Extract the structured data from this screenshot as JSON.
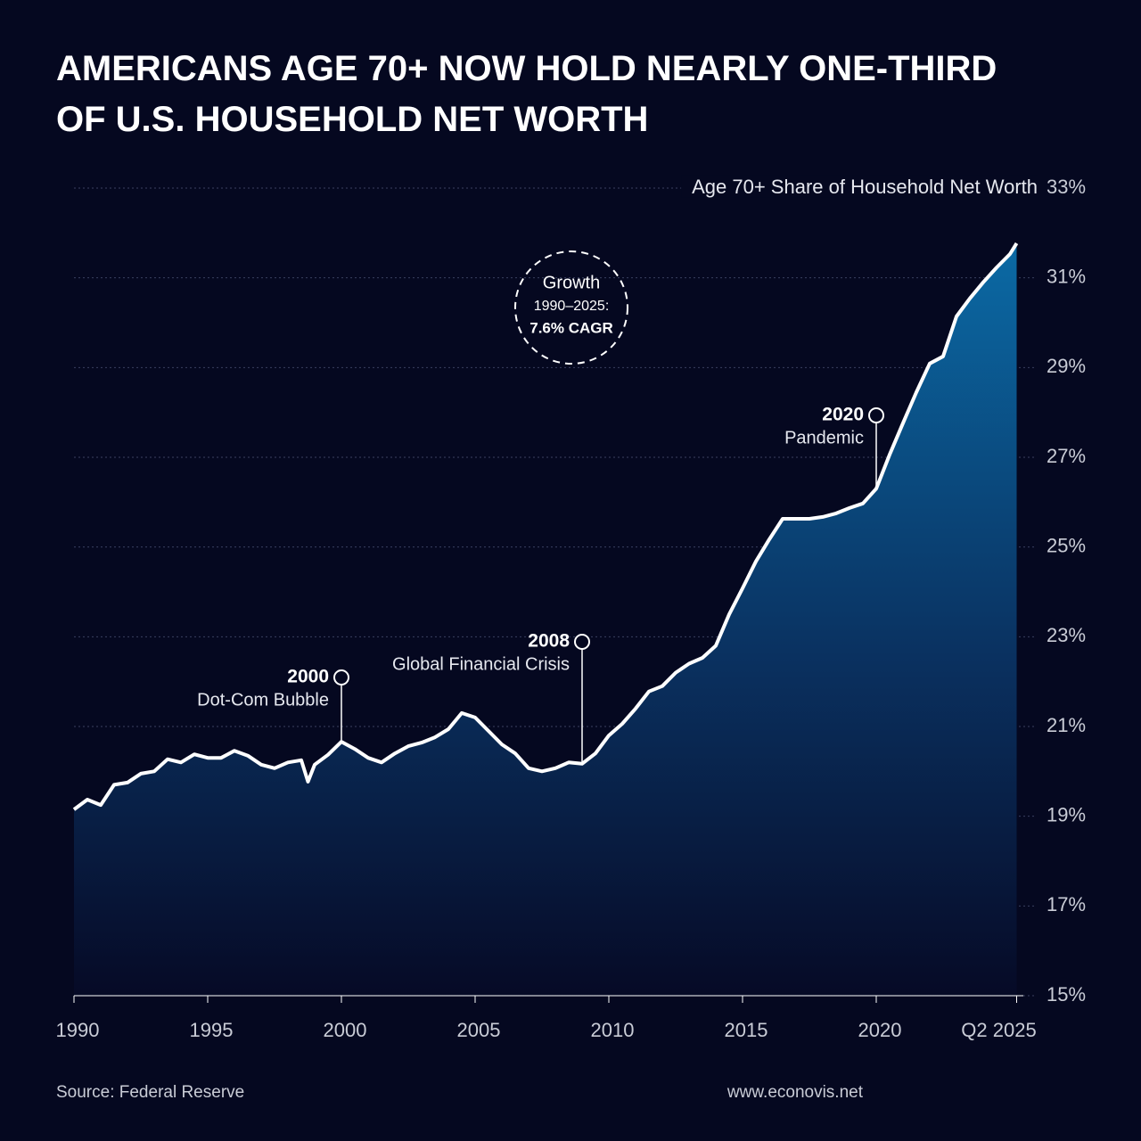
{
  "chart_data": {
    "type": "area",
    "title": [
      "AMERICANS AGE 70+ NOW HOLD NEARLY ONE-THIRD",
      "OF U.S. HOUSEHOLD NET WORTH"
    ],
    "series": [
      {
        "name": "Age 70+ Share of Household Net Worth",
        "color": "#ffffff",
        "x": [
          1990,
          1990.5,
          1991,
          1991.5,
          1992,
          1992.5,
          1993,
          1993.5,
          1994,
          1994.5,
          1995,
          1995.5,
          1996,
          1996.5,
          1997,
          1997.5,
          1998,
          1998.5,
          1998.75,
          1999,
          1999.5,
          2000,
          2000.5,
          2001,
          2001.5,
          2002,
          2002.5,
          2003,
          2003.5,
          2004,
          2004.5,
          2005,
          2005.5,
          2006,
          2006.5,
          2007,
          2007.5,
          2008,
          2008.5,
          2009,
          2009.5,
          2010,
          2010.5,
          2011,
          2011.5,
          2012,
          2012.5,
          2013,
          2013.5,
          2014,
          2014.5,
          2015,
          2015.5,
          2016,
          2016.5,
          2017,
          2017.5,
          2018,
          2018.5,
          2019,
          2019.5,
          2020,
          2020.5,
          2021,
          2021.5,
          2022,
          2022.5,
          2023,
          2023.5,
          2024,
          2024.5,
          2025,
          2025.25
        ],
        "values": [
          19.15,
          19.37,
          19.25,
          19.7,
          19.75,
          19.95,
          20.0,
          20.27,
          20.2,
          20.38,
          20.3,
          20.3,
          20.46,
          20.35,
          20.15,
          20.07,
          20.2,
          20.25,
          19.77,
          20.15,
          20.37,
          20.66,
          20.5,
          20.3,
          20.2,
          20.4,
          20.56,
          20.64,
          20.76,
          20.94,
          21.3,
          21.2,
          20.9,
          20.6,
          20.4,
          20.07,
          20.0,
          20.07,
          20.2,
          20.17,
          20.4,
          20.8,
          21.06,
          21.4,
          21.78,
          21.9,
          22.2,
          22.4,
          22.53,
          22.8,
          23.5,
          24.08,
          24.68,
          25.17,
          25.63,
          25.63,
          25.63,
          25.67,
          25.75,
          25.87,
          25.97,
          26.3,
          27.06,
          27.76,
          28.45,
          29.09,
          29.25,
          30.14,
          30.54,
          30.9,
          31.23,
          31.53,
          31.77
        ]
      }
    ],
    "xlim": [
      1990,
      2025.5
    ],
    "xticks": [
      1990,
      1995,
      2000,
      2005,
      2010,
      2015,
      2020,
      {
        "value": 2025.25,
        "label": "Q2 2025"
      }
    ],
    "ylim": [
      15,
      33
    ],
    "yticks": [
      {
        "value": 15,
        "label": "15%"
      },
      {
        "value": 17,
        "label": "17%"
      },
      {
        "value": 19,
        "label": "19%"
      },
      {
        "value": 21,
        "label": "21%"
      },
      {
        "value": 23,
        "label": "23%"
      },
      {
        "value": 25,
        "label": "25%"
      },
      {
        "value": 27,
        "label": "27%"
      },
      {
        "value": 29,
        "label": "29%"
      },
      {
        "value": 31,
        "label": "31%"
      },
      {
        "value": 33,
        "label": "33%"
      }
    ],
    "grid": true,
    "annotations": [
      {
        "x": 2000,
        "label": "2000",
        "text": "Dot-Com Bubble"
      },
      {
        "x": 2009,
        "label": "2008",
        "text": "Global Financial Crisis"
      },
      {
        "x": 2020,
        "label": "2020",
        "text": "Pandemic"
      }
    ],
    "callout": [
      "Growth",
      "1990–2025:",
      "7.6% CAGR"
    ],
    "source": "Source: Federal Reserve",
    "website": "www.econovis.net"
  }
}
